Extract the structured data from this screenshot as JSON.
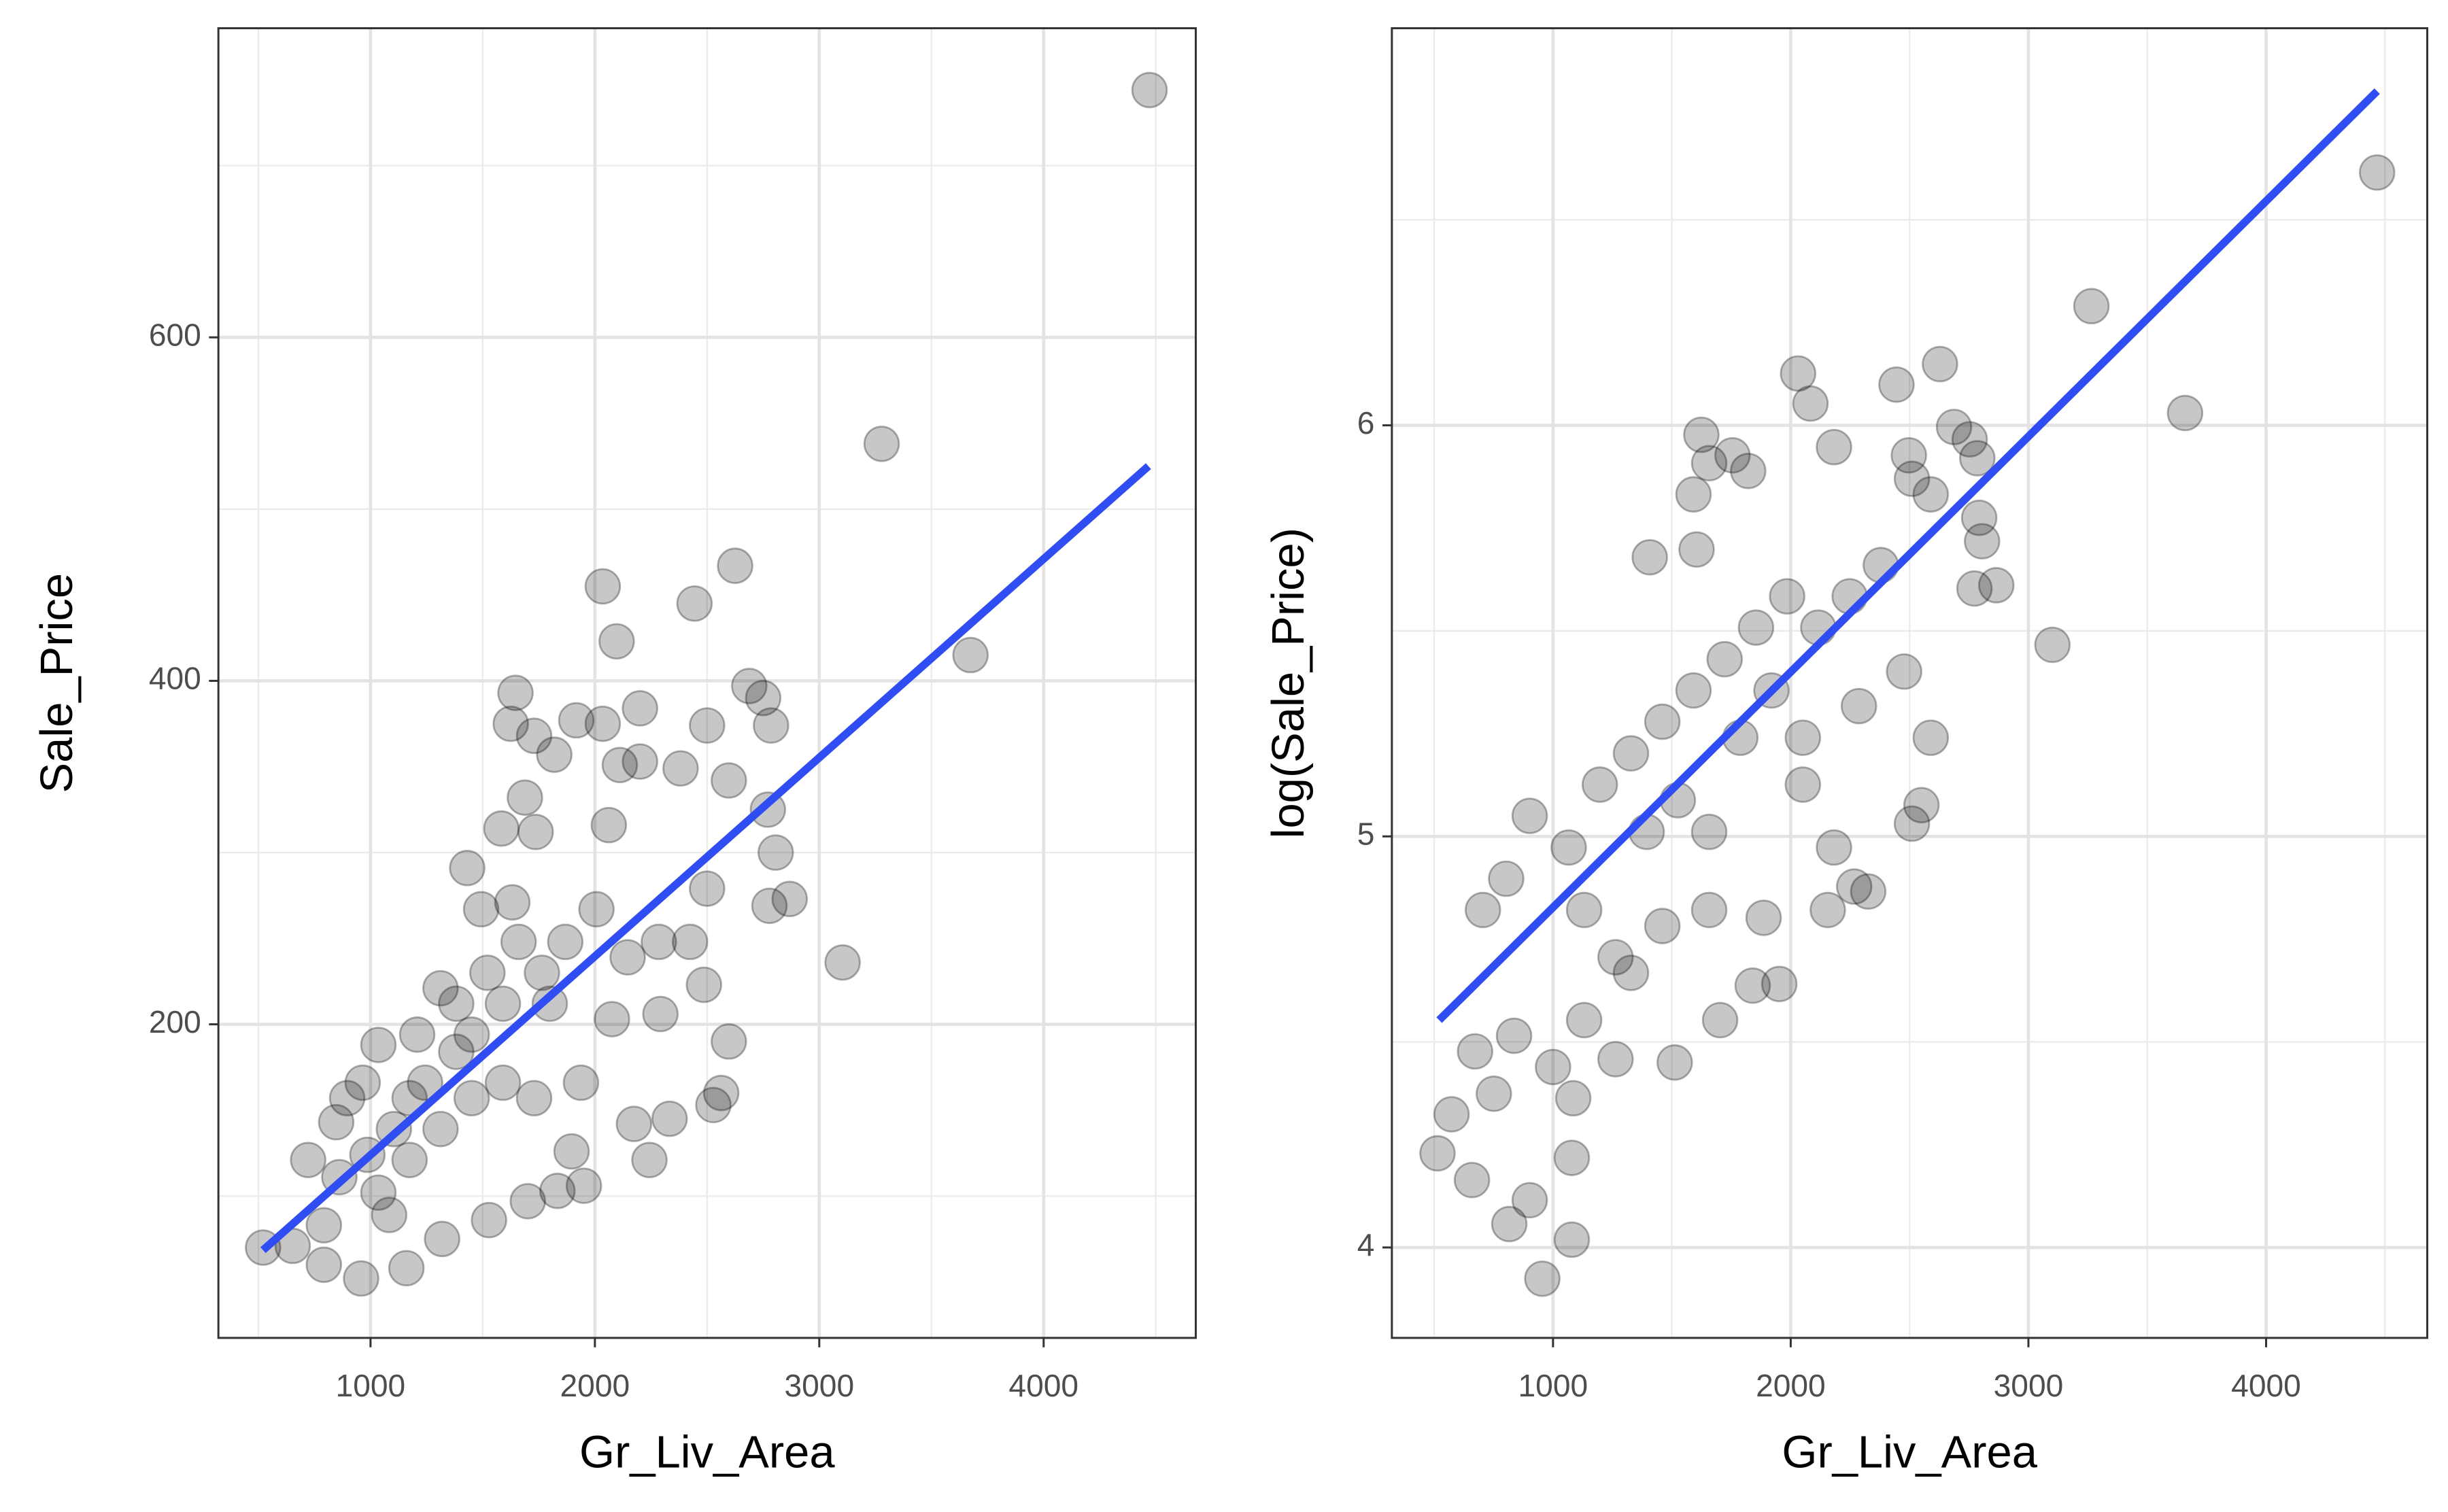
{
  "chart_data": [
    {
      "type": "scatter",
      "x_label": "Gr_Liv_Area",
      "y_label": "Sale_Price",
      "xlim": [
        322,
        4678
      ],
      "ylim": [
        17.4,
        780
      ],
      "xticks": [
        1000,
        2000,
        3000,
        4000
      ],
      "yticks": [
        200,
        400,
        600
      ],
      "xminor": [
        500,
        1500,
        2500,
        3500,
        4500
      ],
      "yminor": [
        100,
        300,
        500,
        700
      ],
      "grid": true,
      "color": "#000000",
      "x": [
        4472,
        3278,
        3674,
        3104,
        2625,
        2444,
        2035,
        2097,
        2688,
        2750,
        2785,
        2771,
        2806,
        2868,
        2778,
        2500,
        2597,
        2382,
        2201,
        2111,
        2062,
        2201,
        1917,
        2035,
        1646,
        1625,
        1729,
        1819,
        1688,
        1736,
        1583,
        1431,
        2500,
        2486,
        2597,
        2563,
        2528,
        2292,
        2333,
        2243,
        2174,
        1896,
        1951,
        1833,
        1701,
        1528,
        1319,
        1160,
        958,
        792,
        653,
        521,
        792,
        1083,
        722,
        986,
        1035,
        1382,
        847,
        896,
        1174,
        1243,
        1451,
        1590,
        1764,
        1868,
        2007,
        2146,
        2285,
        2424,
        1312,
        1451,
        1590,
        1104,
        965,
        1799,
        1660,
        1521,
        1174,
        1312,
        1729,
        1938,
        2076,
        861,
        1035,
        1208,
        1382,
        1493,
        1632
      ],
      "y": [
        744,
        538,
        415,
        236,
        467,
        445,
        455,
        423,
        397,
        390,
        374,
        325,
        300,
        273,
        269,
        374,
        342,
        349,
        353,
        351,
        316,
        384,
        377,
        375,
        393,
        375,
        368,
        357,
        332,
        312,
        314,
        291,
        279,
        223,
        190,
        160,
        153,
        206,
        145,
        121,
        142,
        126,
        106,
        103,
        97,
        86,
        75,
        58,
        52,
        60,
        71,
        70,
        83,
        89,
        121,
        124,
        188,
        184,
        143,
        157,
        157,
        166,
        194,
        212,
        230,
        248,
        267,
        239,
        248,
        248,
        221,
        157,
        166,
        139,
        166,
        212,
        248,
        230,
        121,
        139,
        157,
        166,
        203,
        111,
        102,
        194,
        212,
        267,
        271
      ],
      "fit": {
        "x": [
          521,
          4467
        ],
        "y": [
          68.5,
          525
        ],
        "color": "#2f4df2"
      }
    },
    {
      "type": "scatter",
      "x_label": "Gr_Liv_Area",
      "y_label": "log(Sale_Price)",
      "xlim": [
        322,
        4678
      ],
      "ylim": [
        3.78,
        6.966
      ],
      "xticks": [
        1000,
        2000,
        3000,
        4000
      ],
      "yticks": [
        4,
        5,
        6
      ],
      "xminor": [
        500,
        1500,
        2500,
        3500,
        4500
      ],
      "yminor": [
        4.5,
        5.5,
        6.5
      ],
      "grid": true,
      "color": "#000000",
      "x": [
        4467,
        3265,
        3659,
        3101,
        2031,
        2445,
        2628,
        2083,
        2687,
        2753,
        2785,
        2793,
        2805,
        2865,
        2773,
        2497,
        2589,
        2510,
        2182,
        1624,
        1657,
        1755,
        1821,
        1591,
        1604,
        1407,
        2589,
        2550,
        2510,
        2477,
        2287,
        2267,
        2326,
        2156,
        1952,
        1840,
        1703,
        1512,
        1263,
        1085,
        1079,
        1079,
        955,
        816,
        902,
        659,
        514,
        573,
        672,
        836,
        751,
        1000,
        1131,
        1263,
        1460,
        1657,
        1886,
        803,
        902,
        1066,
        1197,
        1328,
        1460,
        1591,
        1722,
        1854,
        1985,
        2116,
        2248,
        2379,
        1788,
        1919,
        2051,
        1394,
        1525,
        1657,
        705,
        1131,
        1328,
        2051,
        2182
      ],
      "y": [
        6.615,
        6.29,
        6.03,
        5.466,
        6.126,
        6.099,
        6.149,
        6.053,
        5.996,
        5.966,
        5.92,
        5.775,
        5.718,
        5.611,
        5.603,
        5.927,
        5.832,
        5.87,
        5.947,
        5.977,
        5.908,
        5.927,
        5.889,
        5.832,
        5.698,
        5.679,
        5.24,
        5.076,
        5.031,
        5.401,
        5.317,
        4.878,
        4.866,
        4.821,
        4.641,
        4.637,
        4.553,
        4.45,
        4.458,
        4.363,
        4.218,
        4.019,
        3.924,
        4.057,
        4.115,
        4.164,
        4.229,
        4.324,
        4.477,
        4.515,
        4.374,
        4.439,
        4.553,
        4.706,
        4.782,
        4.821,
        4.802,
        4.897,
        5.05,
        4.973,
        5.126,
        5.202,
        5.279,
        5.355,
        5.431,
        5.508,
        5.584,
        5.508,
        5.584,
        5.66,
        5.24,
        5.355,
        5.24,
        5.011,
        5.088,
        5.011,
        4.821,
        4.821,
        4.668,
        5.126,
        4.973
      ],
      "fit": {
        "x": [
          521,
          4467
        ],
        "y": [
          4.553,
          6.813
        ],
        "color": "#2f4df2"
      }
    }
  ]
}
